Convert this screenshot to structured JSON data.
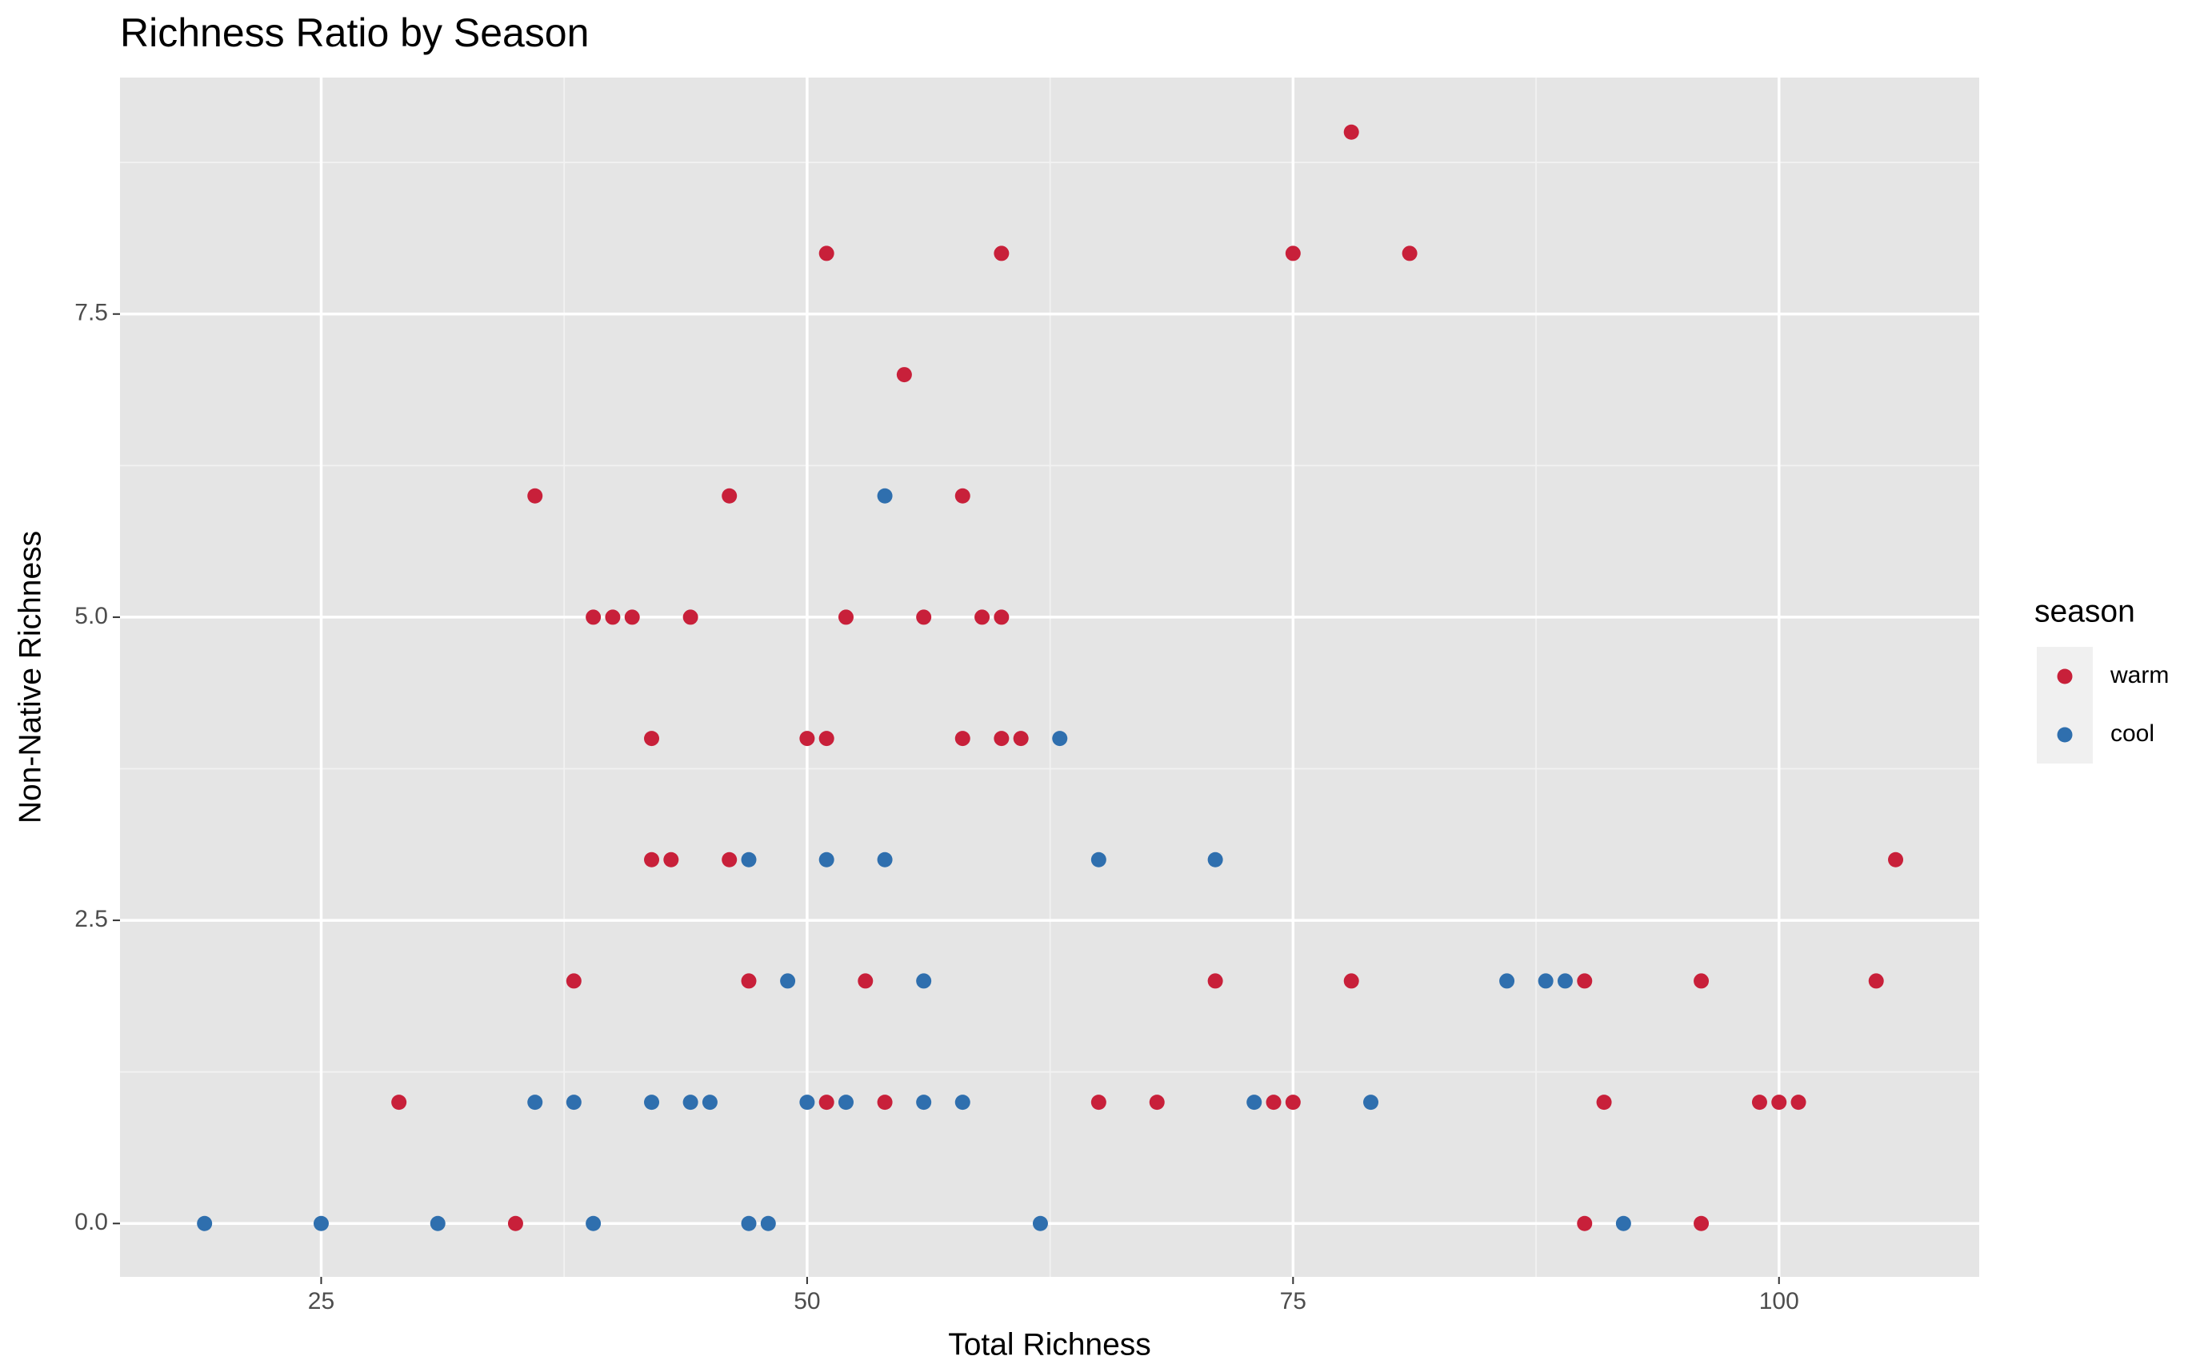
{
  "chart_data": {
    "type": "scatter",
    "title": "Richness Ratio by Season",
    "x_label": "Total Richness",
    "y_label": "Non-Native Richness",
    "legend_title": "season",
    "legend_position": "right",
    "grid": true,
    "xlim": [
      14.65,
      110.3
    ],
    "ylim": [
      -0.44,
      9.45
    ],
    "xticks": [
      25,
      50,
      75,
      100
    ],
    "yticks": [
      {
        "value": 0,
        "label": "0.0"
      },
      {
        "value": 2.5,
        "label": "2.5"
      },
      {
        "value": 5,
        "label": "5.0"
      },
      {
        "value": 7.5,
        "label": "7.5"
      }
    ],
    "series": [
      {
        "name": "warm",
        "color": "#c8203a",
        "x": [
          29,
          35,
          36,
          38,
          39,
          40,
          41,
          42,
          42,
          43,
          44,
          46,
          46,
          47,
          50,
          51,
          51,
          51,
          52,
          53,
          54,
          55,
          56,
          58,
          58,
          59,
          60,
          60,
          60,
          61,
          65,
          68,
          71,
          74,
          75,
          75,
          78,
          78,
          81,
          90,
          90,
          91,
          96,
          96,
          99,
          100,
          101,
          105,
          106
        ],
        "values": [
          1,
          0,
          6,
          2,
          5,
          5,
          5,
          4,
          3,
          3,
          5,
          6,
          3,
          2,
          4,
          8,
          4,
          1,
          5,
          2,
          1,
          7,
          5,
          6,
          4,
          5,
          8,
          5,
          4,
          4,
          1,
          1,
          2,
          1,
          8,
          1,
          9,
          2,
          8,
          2,
          0,
          1,
          2,
          0,
          1,
          1,
          1,
          2,
          3
        ]
      },
      {
        "name": "cool",
        "color": "#2f6fae",
        "x": [
          19,
          25,
          31,
          36,
          38,
          39,
          42,
          44,
          45,
          47,
          47,
          48,
          49,
          50,
          51,
          52,
          54,
          54,
          56,
          56,
          58,
          62,
          63,
          65,
          71,
          73,
          79,
          86,
          88,
          89,
          92
        ],
        "values": [
          0,
          0,
          0,
          1,
          1,
          0,
          1,
          1,
          1,
          3,
          0,
          0,
          2,
          1,
          3,
          1,
          6,
          3,
          2,
          1,
          1,
          0,
          4,
          3,
          3,
          1,
          1,
          2,
          2,
          2,
          0
        ]
      }
    ]
  }
}
